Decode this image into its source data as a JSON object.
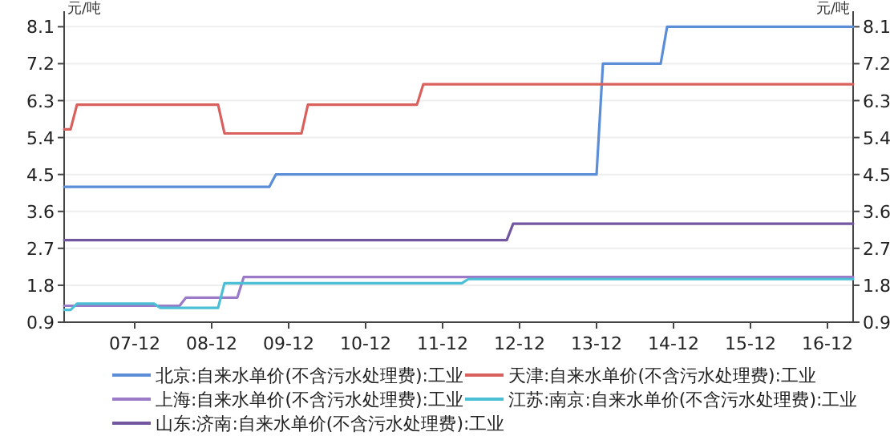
{
  "chart_data": {
    "type": "line",
    "ylabel": "元/吨",
    "y2label": "元/吨",
    "xlim": [
      "2007-01",
      "2017-04"
    ],
    "xticks": [
      {
        "value": "2007-12",
        "label": "07-12"
      },
      {
        "value": "2008-12",
        "label": "08-12"
      },
      {
        "value": "2009-12",
        "label": "09-12"
      },
      {
        "value": "2010-12",
        "label": "10-12"
      },
      {
        "value": "2011-12",
        "label": "11-12"
      },
      {
        "value": "2012-12",
        "label": "12-12"
      },
      {
        "value": "2013-12",
        "label": "13-12"
      },
      {
        "value": "2014-12",
        "label": "14-12"
      },
      {
        "value": "2015-12",
        "label": "15-12"
      },
      {
        "value": "2016-12",
        "label": "16-12"
      }
    ],
    "ylim": [
      0.9,
      8.4
    ],
    "yticks": [
      0.9,
      1.8,
      2.7,
      3.6,
      4.5,
      5.4,
      6.3,
      7.2,
      8.1
    ],
    "y2lim": [
      0.9,
      8.4
    ],
    "y2ticks": [
      0.9,
      1.8,
      2.7,
      3.6,
      4.5,
      5.4,
      6.3,
      7.2,
      8.1
    ],
    "grid": "y",
    "legend": "bottom",
    "series": [
      {
        "name": "北京:自来水单价(不含污水处理费):工业",
        "color": "#5b8ed6",
        "x": [
          "2007-01",
          "2009-09",
          "2009-10",
          "2013-12",
          "2014-01",
          "2014-10",
          "2014-11",
          "2017-04"
        ],
        "values": [
          4.2,
          4.2,
          4.5,
          4.5,
          7.2,
          7.2,
          8.1,
          8.1
        ]
      },
      {
        "name": "天津:自来水单价(不含污水处理费):工业",
        "color": "#d9605c",
        "x": [
          "2007-01",
          "2007-02",
          "2007-03",
          "2009-01",
          "2009-02",
          "2010-02",
          "2010-03",
          "2011-08",
          "2011-09",
          "2017-04"
        ],
        "values": [
          5.6,
          5.6,
          6.2,
          6.2,
          5.5,
          5.5,
          6.2,
          6.2,
          6.7,
          6.7
        ]
      },
      {
        "name": "上海:自来水单价(不含污水处理费):工业",
        "color": "#9b7bc8",
        "x": [
          "2007-01",
          "2008-07",
          "2008-08",
          "2009-04",
          "2009-05",
          "2017-04"
        ],
        "values": [
          1.3,
          1.3,
          1.5,
          1.5,
          2.0,
          2.0
        ]
      },
      {
        "name": "江苏:南京:自来水单价(不含污水处理费):工业",
        "color": "#4bbfd6",
        "x": [
          "2007-01",
          "2007-02",
          "2007-03",
          "2008-03",
          "2008-04",
          "2009-01",
          "2009-02",
          "2012-03",
          "2012-04",
          "2017-04"
        ],
        "values": [
          1.2,
          1.2,
          1.35,
          1.35,
          1.25,
          1.25,
          1.85,
          1.85,
          1.95,
          1.95
        ]
      },
      {
        "name": "山东:济南:自来水单价(不含污水处理费):工业",
        "color": "#7257a0",
        "x": [
          "2007-01",
          "2012-10",
          "2012-11",
          "2017-04"
        ],
        "values": [
          2.9,
          2.9,
          3.3,
          3.3
        ]
      }
    ]
  }
}
